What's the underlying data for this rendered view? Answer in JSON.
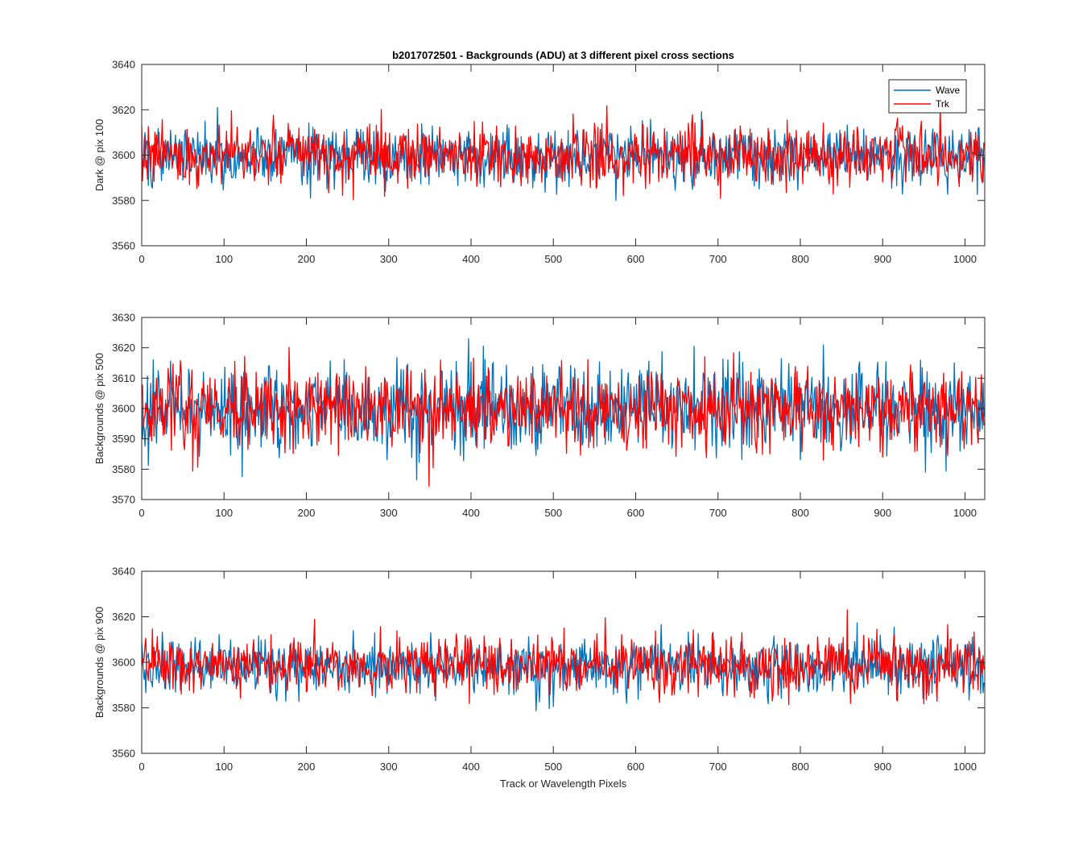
{
  "chart_data": [
    {
      "type": "line",
      "title": "b2017072501 - Backgrounds (ADU) at 3 different pixel cross sections",
      "xlabel": "",
      "ylabel": "Dark @ pix 100",
      "xlim": [
        0,
        1024
      ],
      "ylim": [
        3560,
        3640
      ],
      "xticks": [
        0,
        100,
        200,
        300,
        400,
        500,
        600,
        700,
        800,
        900,
        1000
      ],
      "yticks": [
        3560,
        3580,
        3600,
        3620,
        3640
      ],
      "series": [
        {
          "name": "Wave",
          "color": "#0072BD",
          "mean": 3600,
          "noise_std": 6.5,
          "n_points": 1024,
          "seed": 101
        },
        {
          "name": "Trk",
          "color": "#FF0000",
          "mean": 3600,
          "noise_std": 6.5,
          "n_points": 1024,
          "seed": 202
        }
      ],
      "legend": {
        "entries": [
          "Wave",
          "Trk"
        ],
        "location": "top-right"
      }
    },
    {
      "type": "line",
      "title": "",
      "xlabel": "",
      "ylabel": "Backgrounds @ pix 500",
      "xlim": [
        0,
        1024
      ],
      "ylim": [
        3570,
        3630
      ],
      "xticks": [
        0,
        100,
        200,
        300,
        400,
        500,
        600,
        700,
        800,
        900,
        1000
      ],
      "yticks": [
        3570,
        3580,
        3590,
        3600,
        3610,
        3620,
        3630
      ],
      "series": [
        {
          "name": "Wave",
          "color": "#0072BD",
          "mean": 3600,
          "noise_std": 6.8,
          "n_points": 1024,
          "seed": 303
        },
        {
          "name": "Trk",
          "color": "#FF0000",
          "mean": 3600,
          "noise_std": 6.8,
          "n_points": 1024,
          "seed": 404
        }
      ]
    },
    {
      "type": "line",
      "title": "",
      "xlabel": "Track or Wavelength Pixels",
      "ylabel": "Backgrounds @ pix 900",
      "xlim": [
        0,
        1024
      ],
      "ylim": [
        3560,
        3640
      ],
      "xticks": [
        0,
        100,
        200,
        300,
        400,
        500,
        600,
        700,
        800,
        900,
        1000
      ],
      "yticks": [
        3560,
        3580,
        3600,
        3620,
        3640
      ],
      "series": [
        {
          "name": "Wave",
          "color": "#0072BD",
          "mean": 3598,
          "noise_std": 6.2,
          "n_points": 1024,
          "seed": 505
        },
        {
          "name": "Trk",
          "color": "#FF0000",
          "mean": 3599,
          "noise_std": 6.2,
          "n_points": 1024,
          "seed": 606
        }
      ]
    }
  ]
}
